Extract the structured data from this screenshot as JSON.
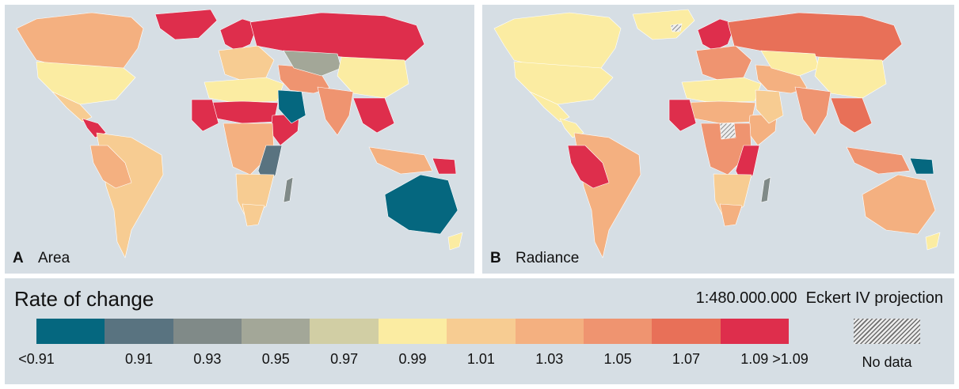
{
  "colors": {
    "ocean": "#d6dee4",
    "ramp": [
      "#05677f",
      "#597380",
      "#808a88",
      "#a3a798",
      "#d1cea4",
      "#fbeca2",
      "#f7cc92",
      "#f4b080",
      "#ef9470",
      "#e87058",
      "#de2e4c"
    ],
    "no_data_hatch": "#6d6d6d"
  },
  "panels": [
    {
      "letter": "A",
      "name": "Area"
    },
    {
      "letter": "B",
      "name": "Radiance"
    }
  ],
  "legend": {
    "title": "Rate of change",
    "scale_projection": "1:480.000.000  Eckert IV projection",
    "ticks": [
      "<0.91",
      "0.91",
      "0.93",
      "0.95",
      "0.97",
      "0.99",
      "1.01",
      "1.03",
      "1.05",
      "1.07",
      "1.09",
      ">1.09"
    ],
    "no_data_label": "No data"
  },
  "regions": {
    "A": {
      "greenland": 10,
      "canada": 7,
      "usa": 5,
      "mexico": 6,
      "central_america": 10,
      "south_america": 6,
      "peru_bolivia": 7,
      "scandinavia": 10,
      "russia": 10,
      "europe": 6,
      "north_africa": 5,
      "sahel": 10,
      "west_africa": 10,
      "horn_africa": 10,
      "central_africa": 7,
      "east_africa": 1,
      "southern_africa": 6,
      "south_africa": 6,
      "madagascar": 2,
      "middle_east": 8,
      "arabia": 0,
      "central_asia": 3,
      "china": 5,
      "india": 8,
      "southeast_asia": 10,
      "indonesia": 7,
      "png": 10,
      "australia": 0,
      "new_zealand": 5
    },
    "B": {
      "greenland": 5,
      "canada": 5,
      "usa": 5,
      "mexico": 5,
      "central_america": 5,
      "south_america": 7,
      "peru_bolivia": 10,
      "scandinavia": 10,
      "russia": 9,
      "europe": 8,
      "north_africa": 5,
      "sahel": 7,
      "west_africa": 10,
      "horn_africa": 7,
      "central_africa": 8,
      "east_africa": 10,
      "southern_africa": 6,
      "south_africa": 7,
      "madagascar": 2,
      "middle_east": 7,
      "arabia": 6,
      "central_asia": 5,
      "china": 5,
      "india": 8,
      "southeast_asia": 9,
      "indonesia": 8,
      "png": 0,
      "australia": 7,
      "new_zealand": 5
    }
  }
}
